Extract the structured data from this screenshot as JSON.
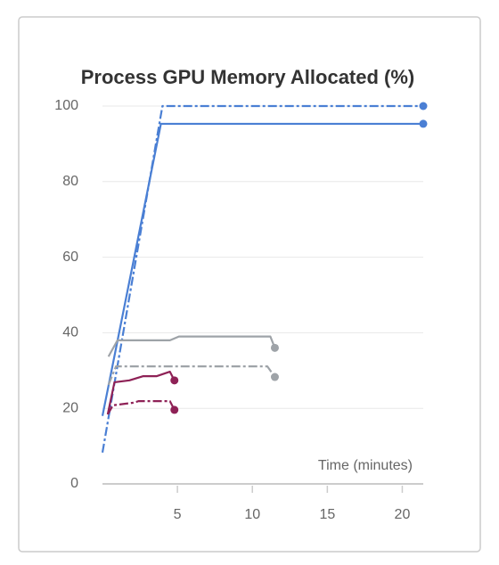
{
  "chart_data": {
    "type": "line",
    "title": "Process GPU Memory Allocated (%)",
    "x_label": "Time (minutes)",
    "xlim": [
      0,
      21.4
    ],
    "xticks": [
      5,
      10,
      15,
      20
    ],
    "ylim": [
      0,
      100
    ],
    "yticks": [
      0,
      20,
      40,
      60,
      80,
      100
    ],
    "grid": true,
    "end_marker": true,
    "series": [
      {
        "color": "#4a7fd4",
        "dashed": true,
        "x": [
          0,
          4.0,
          21.4
        ],
        "values": [
          8.3,
          100,
          100
        ]
      },
      {
        "color": "#4a7fd4",
        "dashed": false,
        "x": [
          0,
          3.9,
          21.4
        ],
        "values": [
          18,
          95.3,
          95.3
        ]
      },
      {
        "color": "#9ea3a8",
        "dashed": false,
        "x": [
          0.4,
          1.0,
          4.5,
          5.1,
          11.2,
          11.5
        ],
        "values": [
          33.7,
          38,
          38,
          39,
          39,
          36
        ]
      },
      {
        "color": "#9ea3a8",
        "dashed": true,
        "x": [
          0.4,
          0.9,
          11.0,
          11.5
        ],
        "values": [
          26.2,
          31.1,
          31.1,
          28.3
        ]
      },
      {
        "color": "#8e2156",
        "dashed": false,
        "x": [
          0.35,
          0.8,
          1.8,
          2.7,
          3.6,
          4.5,
          4.8
        ],
        "values": [
          18.4,
          26.9,
          27.4,
          28.5,
          28.5,
          29.7,
          27.4
        ]
      },
      {
        "color": "#8e2156",
        "dashed": true,
        "x": [
          0.35,
          0.7,
          2.1,
          2.4,
          4.5,
          4.8
        ],
        "values": [
          18.4,
          20.8,
          21.5,
          21.9,
          21.9,
          19.6
        ]
      }
    ]
  }
}
